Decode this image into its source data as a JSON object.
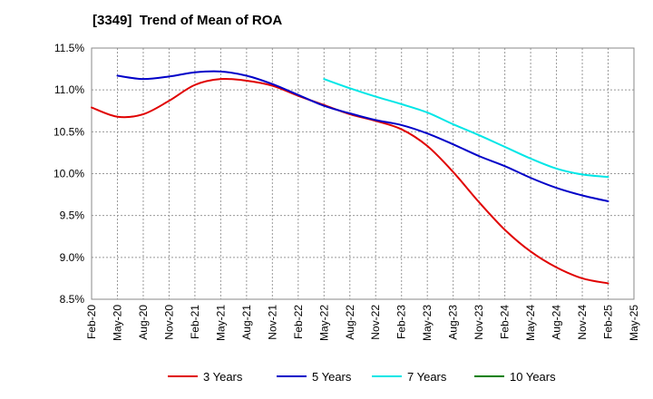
{
  "chart_data": {
    "type": "line",
    "title": "[3349]  Trend of Mean of ROA",
    "xlabel": "",
    "ylabel": "",
    "ylim": [
      8.5,
      11.5
    ],
    "y_ticks": [
      "11.5%",
      "11.0%",
      "10.5%",
      "10.0%",
      "9.5%",
      "9.0%",
      "8.5%"
    ],
    "y_tick_values": [
      11.5,
      11.0,
      10.5,
      10.0,
      9.5,
      9.0,
      8.5
    ],
    "categories": [
      "Feb-20",
      "May-20",
      "Aug-20",
      "Nov-20",
      "Feb-21",
      "May-21",
      "Aug-21",
      "Nov-21",
      "Feb-22",
      "May-22",
      "Aug-22",
      "Nov-22",
      "Feb-23",
      "May-23",
      "Aug-23",
      "Nov-23",
      "Feb-24",
      "May-24",
      "Aug-24",
      "Nov-24",
      "Feb-25",
      "May-25"
    ],
    "grid": true,
    "legend_position": "bottom",
    "series": [
      {
        "name": "3 Years",
        "color": "#e00000",
        "values": [
          10.79,
          10.68,
          10.71,
          10.87,
          11.06,
          11.13,
          11.11,
          11.05,
          10.93,
          10.82,
          10.71,
          10.63,
          10.53,
          10.33,
          10.02,
          9.66,
          9.33,
          9.07,
          8.88,
          8.75,
          8.69,
          null
        ]
      },
      {
        "name": "5 Years",
        "color": "#0000c8",
        "values": [
          null,
          11.17,
          11.13,
          11.16,
          11.21,
          11.22,
          11.17,
          11.07,
          10.94,
          10.81,
          10.72,
          10.64,
          10.58,
          10.48,
          10.35,
          10.21,
          10.09,
          9.95,
          9.83,
          9.74,
          9.67,
          null
        ]
      },
      {
        "name": "7 Years",
        "color": "#00e6e6",
        "values": [
          null,
          null,
          null,
          null,
          null,
          null,
          null,
          null,
          null,
          11.13,
          11.02,
          10.92,
          10.83,
          10.73,
          10.59,
          10.46,
          10.32,
          10.18,
          10.06,
          9.99,
          9.96,
          null
        ]
      },
      {
        "name": "10 Years",
        "color": "#008000",
        "values": [
          null,
          null,
          null,
          null,
          null,
          null,
          null,
          null,
          null,
          null,
          null,
          null,
          null,
          null,
          null,
          null,
          null,
          null,
          null,
          null,
          null,
          null
        ]
      }
    ]
  }
}
